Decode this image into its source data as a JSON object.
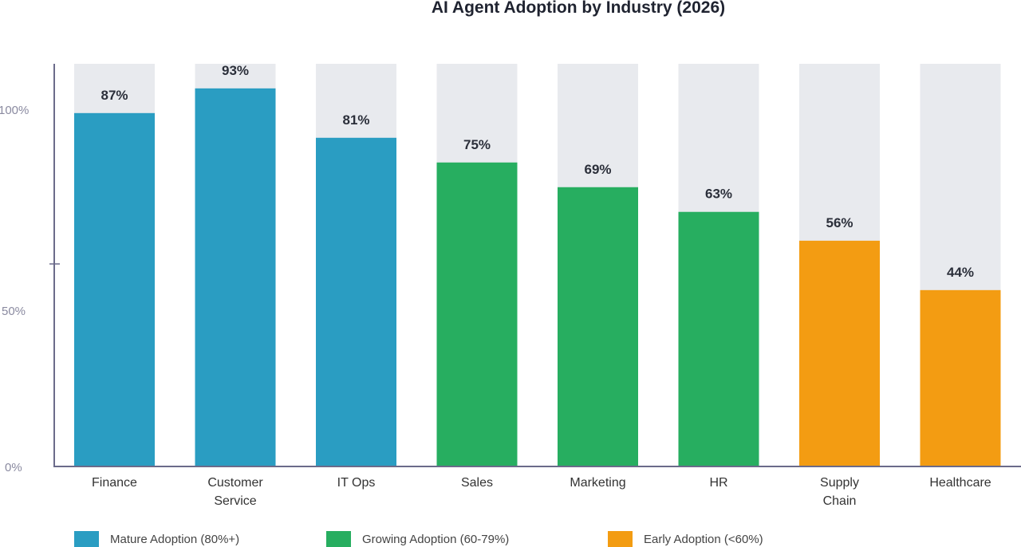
{
  "chart_data": {
    "type": "bar",
    "title": "AI Agent Adoption by Industry (2026)",
    "categories": [
      "Finance",
      "Customer Service",
      "IT Ops",
      "Sales",
      "Marketing",
      "HR",
      "Supply Chain",
      "Healthcare"
    ],
    "category_lines": [
      [
        "Finance"
      ],
      [
        "Customer",
        "Service"
      ],
      [
        "IT Ops"
      ],
      [
        "Sales"
      ],
      [
        "Marketing"
      ],
      [
        "HR"
      ],
      [
        "Supply",
        "Chain"
      ],
      [
        "Healthcare"
      ]
    ],
    "values": [
      87,
      93,
      81,
      75,
      69,
      63,
      56,
      44
    ],
    "data_labels": [
      "87%",
      "93%",
      "81%",
      "75%",
      "69%",
      "63%",
      "56%",
      "44%"
    ],
    "groups": [
      "mature",
      "mature",
      "mature",
      "growing",
      "growing",
      "growing",
      "early",
      "early"
    ],
    "y_ticks": [
      "100%",
      "50%",
      "0%"
    ],
    "xlabel": "",
    "ylabel": "",
    "grid": false,
    "legend_position": "bottom",
    "legend": [
      {
        "key": "mature",
        "label": "Mature Adoption (80%+)",
        "color": "#2a9dc2"
      },
      {
        "key": "growing",
        "label": "Growing Adoption (60-79%)",
        "color": "#27ae60"
      },
      {
        "key": "early",
        "label": "Early Adoption (<60%)",
        "color": "#f39c12"
      }
    ],
    "track_color": "#e8eaee"
  }
}
